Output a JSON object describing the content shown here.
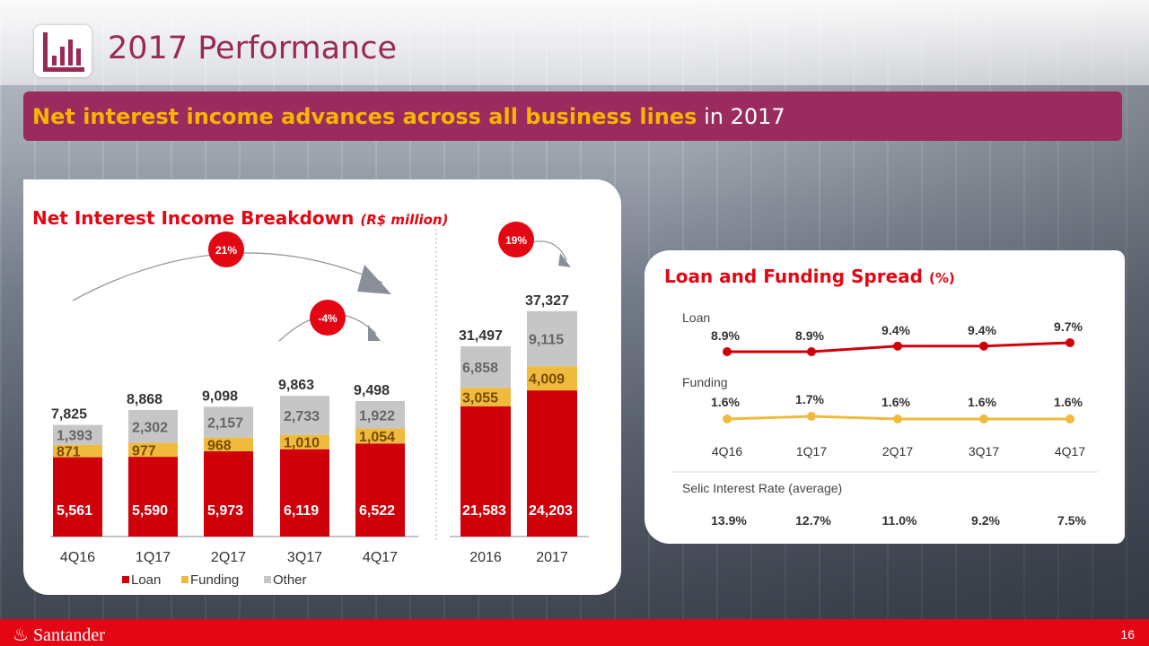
{
  "header": {
    "title": "2017 Performance"
  },
  "banner": {
    "strong": "Net interest income advances across all business lines",
    "rest": " in 2017"
  },
  "footer": {
    "brand": "Santander",
    "page": "16"
  },
  "colors": {
    "loan": "#d0000b",
    "funding": "#f0bb3c",
    "other": "#c6c6c6",
    "accent": "#e30613",
    "brand": "#9b2857"
  },
  "chart_data": [
    {
      "type": "bar",
      "stacked": true,
      "title": "Net Interest Income Breakdown",
      "unit_note": "(R$ million)",
      "categories": [
        "4Q16",
        "1Q17",
        "2Q17",
        "3Q17",
        "4Q17"
      ],
      "series": [
        {
          "name": "Loan",
          "values": [
            5561,
            5590,
            5973,
            6119,
            6522
          ]
        },
        {
          "name": "Funding",
          "values": [
            871,
            977,
            968,
            1010,
            1054
          ]
        },
        {
          "name": "Other",
          "values": [
            1393,
            2302,
            2157,
            2733,
            1922
          ]
        }
      ],
      "totals": [
        7825,
        8868,
        9098,
        9863,
        9498
      ],
      "labels": {
        "Loan": [
          "5,561",
          "5,590",
          "5,973",
          "6,119",
          "6,522"
        ],
        "Funding": [
          "871",
          "977",
          "968",
          "1,010",
          "1,054"
        ],
        "Other": [
          "1,393",
          "2,302",
          "2,157",
          "2,733",
          "1,922"
        ],
        "totals": [
          "7,825",
          "8,868",
          "9,098",
          "9,863",
          "9,498"
        ]
      },
      "legend": [
        "Loan",
        "Funding",
        "Other"
      ],
      "annotations": [
        "21%",
        "-4%"
      ]
    },
    {
      "type": "bar",
      "stacked": true,
      "categories": [
        "2016",
        "2017"
      ],
      "series": [
        {
          "name": "Loan",
          "values": [
            21583,
            24203
          ]
        },
        {
          "name": "Funding",
          "values": [
            3055,
            4009
          ]
        },
        {
          "name": "Other",
          "values": [
            6858,
            9115
          ]
        }
      ],
      "totals": [
        31497,
        37327
      ],
      "labels": {
        "Loan": [
          "21,583",
          "24,203"
        ],
        "Funding": [
          "3,055",
          "4,009"
        ],
        "Other": [
          "6,858",
          "9,115"
        ],
        "totals": [
          "31,497",
          "37,327"
        ]
      },
      "annotations": [
        "19%"
      ]
    },
    {
      "type": "line",
      "title": "Loan and Funding Spread",
      "unit_note": "(%)",
      "x": [
        "4Q16",
        "1Q17",
        "2Q17",
        "3Q17",
        "4Q17"
      ],
      "series": [
        {
          "name": "Loan",
          "values": [
            8.9,
            8.9,
            9.4,
            9.4,
            9.7
          ],
          "labels": [
            "8.9%",
            "8.9%",
            "9.4%",
            "9.4%",
            "9.7%"
          ]
        },
        {
          "name": "Funding",
          "values": [
            1.6,
            1.7,
            1.6,
            1.6,
            1.6
          ],
          "labels": [
            "1.6%",
            "1.7%",
            "1.6%",
            "1.6%",
            "1.6%"
          ]
        }
      ],
      "table": {
        "label": "Selic Interest Rate (average)",
        "values": [
          "13.9%",
          "12.7%",
          "11.0%",
          "9.2%",
          "7.5%"
        ]
      }
    }
  ]
}
